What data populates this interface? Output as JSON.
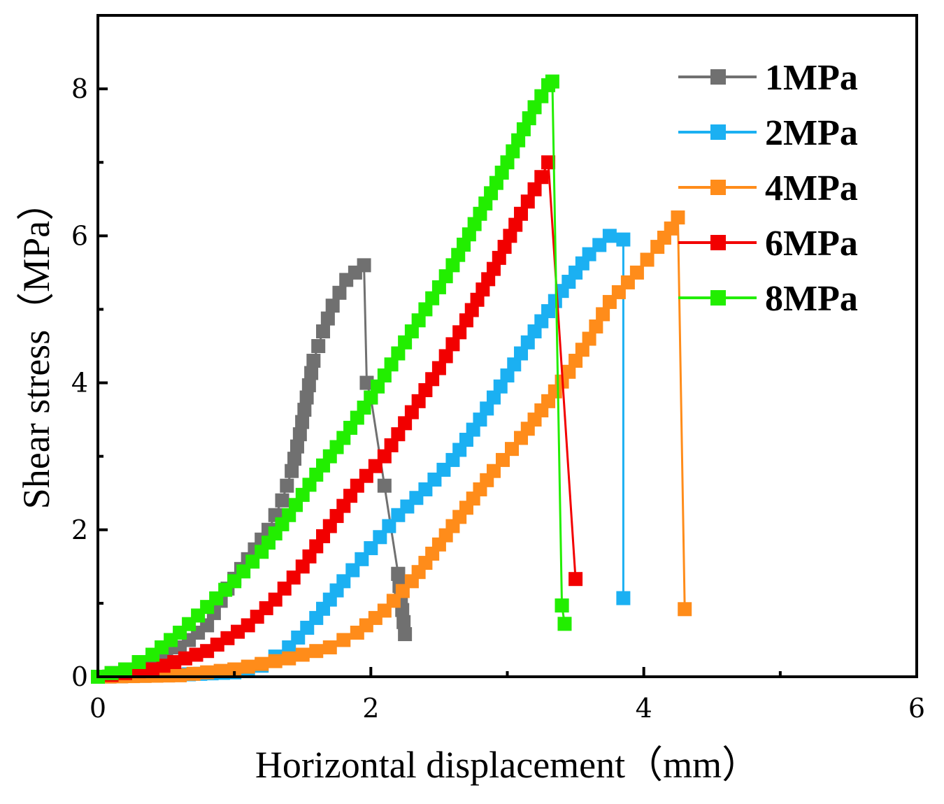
{
  "chart_data": {
    "type": "line",
    "title": "",
    "xlabel": "Horizontal displacement（mm）",
    "ylabel": "Shear stress（MPa）",
    "xlim": [
      0,
      6
    ],
    "ylim": [
      0,
      9
    ],
    "xticks": [
      0,
      2,
      4,
      6
    ],
    "yticks": [
      0,
      2,
      4,
      6,
      8
    ],
    "grid": false,
    "legend_position": "top-right",
    "series": [
      {
        "name": "1MPa",
        "color": "#707070",
        "points": [
          [
            0.0,
            0.0
          ],
          [
            0.2,
            0.1
          ],
          [
            0.4,
            0.22
          ],
          [
            0.6,
            0.4
          ],
          [
            0.8,
            0.7
          ],
          [
            0.95,
            1.2
          ],
          [
            1.1,
            1.6
          ],
          [
            1.25,
            2.0
          ],
          [
            1.35,
            2.4
          ],
          [
            1.42,
            2.8
          ],
          [
            1.48,
            3.3
          ],
          [
            1.53,
            3.8
          ],
          [
            1.58,
            4.3
          ],
          [
            1.65,
            4.7
          ],
          [
            1.72,
            5.05
          ],
          [
            1.82,
            5.4
          ],
          [
            1.95,
            5.6
          ],
          [
            1.97,
            4.0
          ],
          [
            2.0,
            3.8
          ],
          [
            2.1,
            2.6
          ],
          [
            2.2,
            1.4
          ],
          [
            2.25,
            0.58
          ]
        ]
      },
      {
        "name": "2MPa",
        "color": "#1BB0F2",
        "points": [
          [
            0.0,
            0.0
          ],
          [
            0.5,
            0.02
          ],
          [
            1.0,
            0.06
          ],
          [
            1.2,
            0.15
          ],
          [
            1.4,
            0.4
          ],
          [
            1.6,
            0.8
          ],
          [
            1.8,
            1.3
          ],
          [
            2.0,
            1.75
          ],
          [
            2.2,
            2.2
          ],
          [
            2.4,
            2.55
          ],
          [
            2.6,
            2.95
          ],
          [
            2.8,
            3.5
          ],
          [
            3.0,
            4.1
          ],
          [
            3.2,
            4.7
          ],
          [
            3.4,
            5.25
          ],
          [
            3.6,
            5.75
          ],
          [
            3.75,
            6.0
          ],
          [
            3.85,
            5.95
          ],
          [
            3.85,
            1.07
          ]
        ]
      },
      {
        "name": "4MPa",
        "color": "#FF8C1A",
        "points": [
          [
            0.0,
            0.0
          ],
          [
            0.6,
            0.02
          ],
          [
            1.0,
            0.1
          ],
          [
            1.4,
            0.25
          ],
          [
            1.7,
            0.4
          ],
          [
            1.9,
            0.6
          ],
          [
            2.1,
            0.9
          ],
          [
            2.3,
            1.3
          ],
          [
            2.5,
            1.8
          ],
          [
            2.7,
            2.3
          ],
          [
            2.9,
            2.8
          ],
          [
            3.1,
            3.25
          ],
          [
            3.3,
            3.75
          ],
          [
            3.45,
            4.15
          ],
          [
            3.6,
            4.6
          ],
          [
            3.75,
            5.1
          ],
          [
            3.95,
            5.5
          ],
          [
            4.1,
            5.85
          ],
          [
            4.2,
            6.1
          ],
          [
            4.25,
            6.25
          ],
          [
            4.3,
            0.92
          ]
        ]
      },
      {
        "name": "6MPa",
        "color": "#F20000",
        "points": [
          [
            0.0,
            0.0
          ],
          [
            0.4,
            0.1
          ],
          [
            0.8,
            0.35
          ],
          [
            1.1,
            0.7
          ],
          [
            1.3,
            1.05
          ],
          [
            1.5,
            1.5
          ],
          [
            1.7,
            2.05
          ],
          [
            1.9,
            2.6
          ],
          [
            2.1,
            3.0
          ],
          [
            2.3,
            3.6
          ],
          [
            2.5,
            4.2
          ],
          [
            2.7,
            4.85
          ],
          [
            2.9,
            5.55
          ],
          [
            3.1,
            6.3
          ],
          [
            3.25,
            6.8
          ],
          [
            3.3,
            7.0
          ],
          [
            3.5,
            1.33
          ]
        ]
      },
      {
        "name": "8MPa",
        "color": "#22EE00",
        "points": [
          [
            0.0,
            0.0
          ],
          [
            0.2,
            0.1
          ],
          [
            0.4,
            0.3
          ],
          [
            0.6,
            0.6
          ],
          [
            0.8,
            0.95
          ],
          [
            1.0,
            1.3
          ],
          [
            1.2,
            1.7
          ],
          [
            1.4,
            2.2
          ],
          [
            1.6,
            2.75
          ],
          [
            1.8,
            3.25
          ],
          [
            2.0,
            3.8
          ],
          [
            2.2,
            4.4
          ],
          [
            2.4,
            5.0
          ],
          [
            2.6,
            5.6
          ],
          [
            2.8,
            6.3
          ],
          [
            3.0,
            7.0
          ],
          [
            3.2,
            7.75
          ],
          [
            3.3,
            8.05
          ],
          [
            3.33,
            8.1
          ],
          [
            3.4,
            0.97
          ],
          [
            3.42,
            0.72
          ]
        ]
      }
    ]
  }
}
